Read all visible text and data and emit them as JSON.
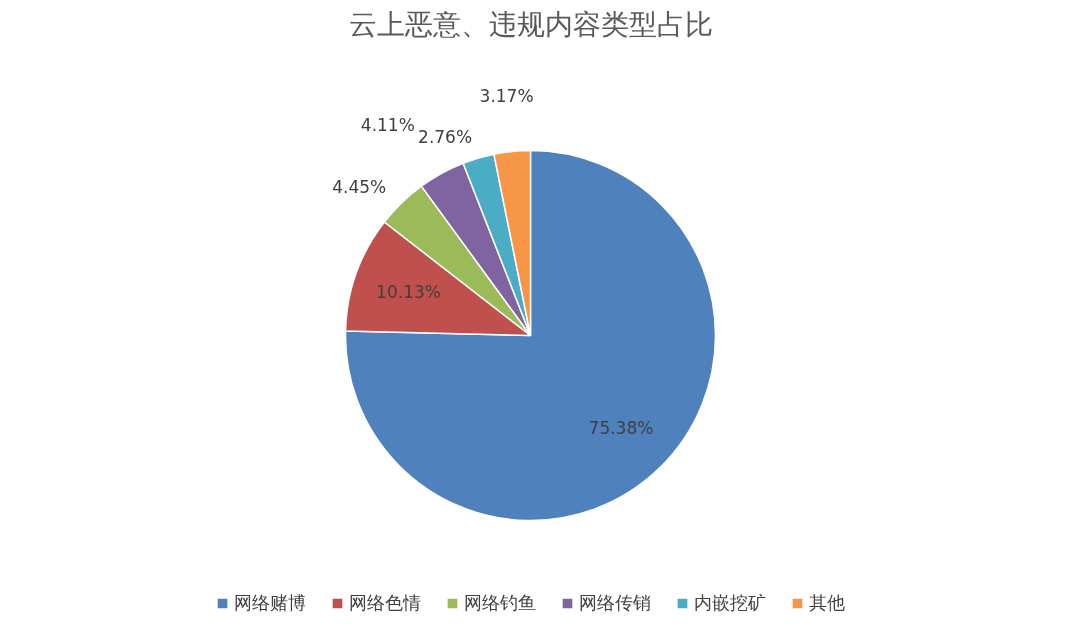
{
  "chart_data": {
    "type": "pie",
    "title": "云上恶意、违规内容类型占比",
    "categories": [
      "网络赌博",
      "网络色情",
      "网络钓鱼",
      "网络传销",
      "内嵌挖矿",
      "其他"
    ],
    "values": [
      75.38,
      10.13,
      4.45,
      4.11,
      2.76,
      3.17
    ],
    "colors": [
      "#4f81bd",
      "#c0504d",
      "#9bbb59",
      "#8064a2",
      "#4bacc6",
      "#f79646"
    ],
    "value_labels": [
      "75.38%",
      "10.13%",
      "4.45%",
      "4.11%",
      "2.76%",
      "3.17%"
    ],
    "legend": "bottom"
  }
}
